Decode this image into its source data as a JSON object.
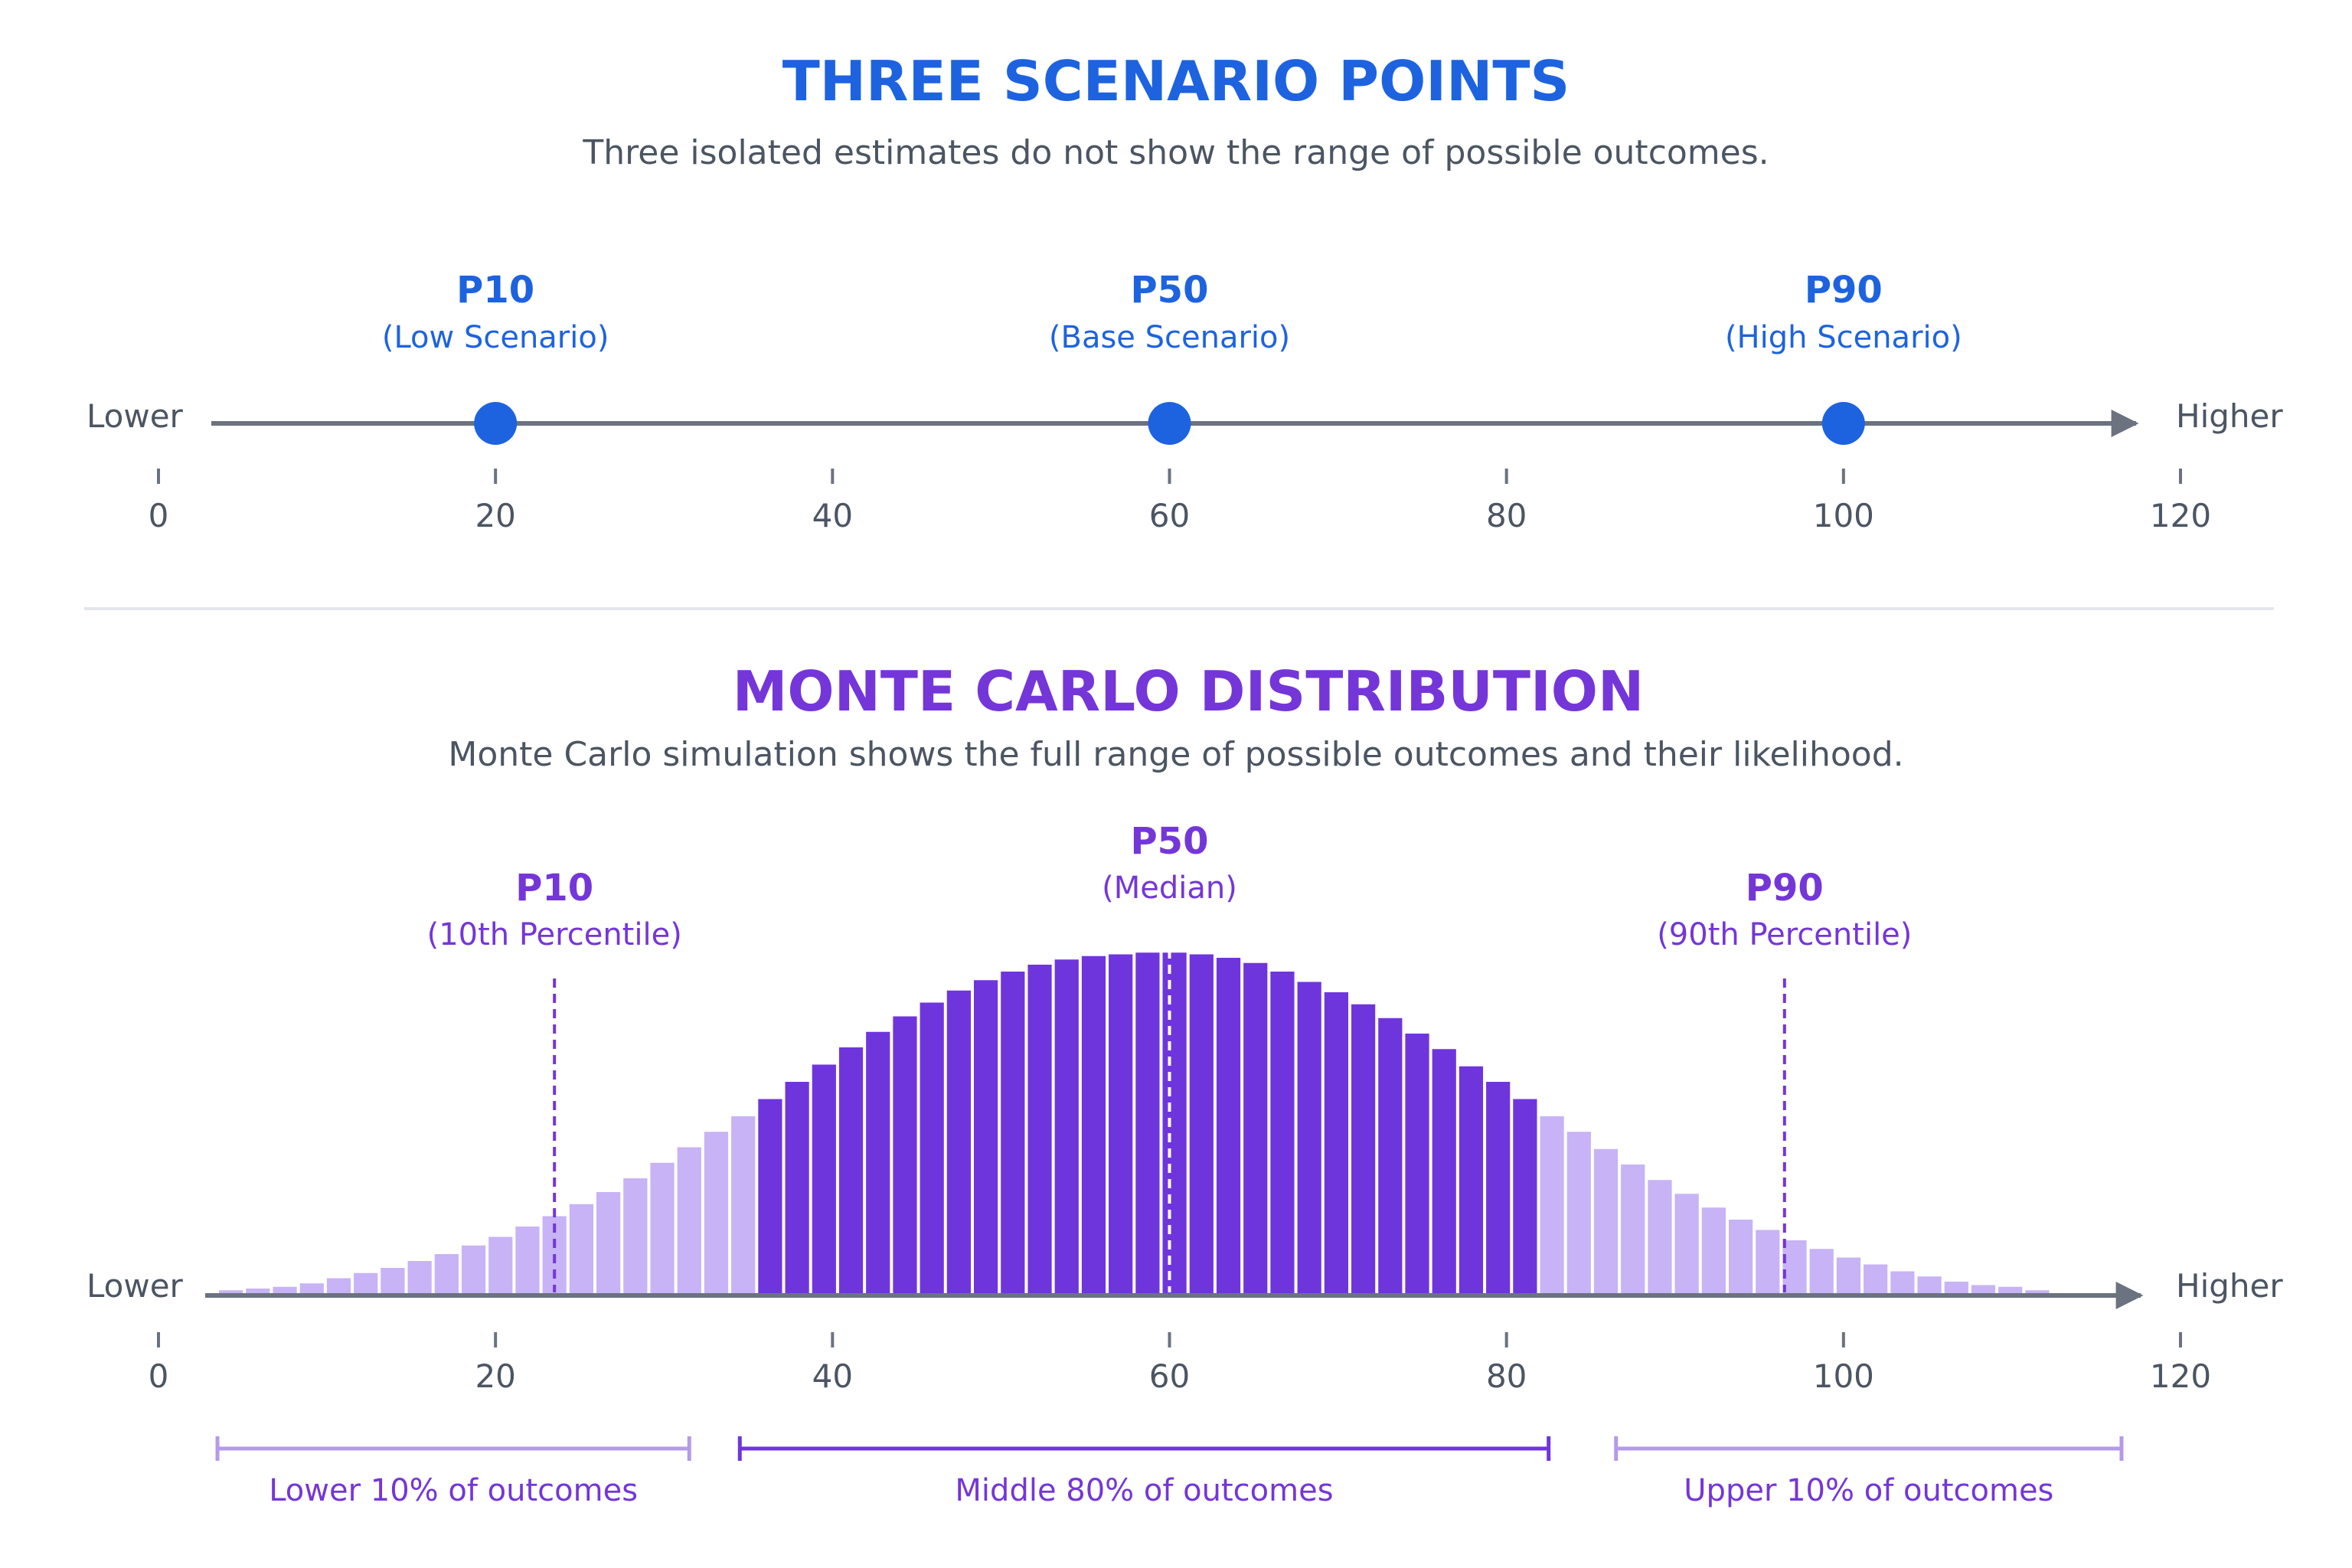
{
  "colors": {
    "blue": "#1d63e0",
    "purple": "#7436d8",
    "purple_dark": "#6f35dd",
    "purple_light": "#c7b3f5",
    "purple_marker": "#b49ae9",
    "axis": "#6b7280",
    "text_gray": "#4b5563",
    "divider": "#e3e5ea"
  },
  "top": {
    "title": "THREE SCENARIO POINTS",
    "subtitle": "Three isolated estimates do not show the range of possible outcomes.",
    "axis_lower": "Lower",
    "axis_higher": "Higher"
  },
  "bottom": {
    "title": "MONTE CARLO DISTRIBUTION",
    "subtitle": "Monte Carlo simulation shows the full range of possible outcomes and their likelihood.",
    "axis_lower": "Lower",
    "axis_higher": "Higher"
  },
  "chart_data": [
    {
      "type": "scatter",
      "title": "THREE SCENARIO POINTS",
      "subtitle": "Three isolated estimates do not show the range of possible outcomes.",
      "xlim": [
        0,
        120
      ],
      "x_ticks": [
        0,
        20,
        40,
        60,
        80,
        100,
        120
      ],
      "x_tick_labels": [
        "0",
        "20",
        "40",
        "60",
        "80",
        "100",
        "120"
      ],
      "x_axis_ends": [
        "Lower",
        "Higher"
      ],
      "points": [
        {
          "x": 20,
          "label": "P10",
          "sublabel": "(Low Scenario)"
        },
        {
          "x": 60,
          "label": "P50",
          "sublabel": "(Base Scenario)"
        },
        {
          "x": 100,
          "label": "P90",
          "sublabel": "(High Scenario)"
        }
      ]
    },
    {
      "type": "bar",
      "title": "MONTE CARLO DISTRIBUTION",
      "subtitle": "Monte Carlo simulation shows the full range of possible outcomes and their likelihood.",
      "xlim": [
        0,
        120
      ],
      "x_ticks": [
        0,
        20,
        40,
        60,
        80,
        100,
        120
      ],
      "x_tick_labels": [
        "0",
        "20",
        "40",
        "60",
        "80",
        "100",
        "120"
      ],
      "x_axis_ends": [
        "Lower",
        "Higher"
      ],
      "bin_start": 3.5,
      "bin_width": 1.6,
      "values": [
        1.5,
        2,
        2.5,
        3.5,
        5,
        6.5,
        8,
        10,
        12,
        14.5,
        17,
        20,
        23,
        26.5,
        30,
        34,
        38.5,
        43,
        47.5,
        52,
        57,
        62,
        67,
        72,
        76.5,
        81,
        85,
        88.5,
        91.5,
        94,
        96,
        97.5,
        98.5,
        99,
        99.5,
        99.5,
        99,
        98,
        96.5,
        94,
        91,
        88,
        84.5,
        80.5,
        76,
        71.5,
        66.5,
        62,
        57,
        52,
        47.5,
        42.5,
        38,
        33.5,
        29.5,
        25.5,
        22,
        19,
        16,
        13.5,
        11,
        9,
        7,
        5.5,
        4,
        3,
        2.5,
        1.5
      ],
      "ylim": [
        0,
        100
      ],
      "markers": [
        {
          "x": 23.5,
          "label": "P10",
          "sublabel": "(10th Percentile)"
        },
        {
          "x": 60,
          "label": "P50",
          "sublabel": "(Median)"
        },
        {
          "x": 96.5,
          "label": "P90",
          "sublabel": "(90th Percentile)"
        }
      ],
      "ranges": [
        {
          "from": 3.5,
          "to": 31.5,
          "label": "Lower 10% of outcomes"
        },
        {
          "from": 34.5,
          "to": 82.5,
          "label": "Middle 80% of outcomes"
        },
        {
          "from": 86.5,
          "to": 116.5,
          "label": "Upper 10% of outcomes"
        }
      ],
      "highlight_range": [
        35,
        82
      ]
    }
  ]
}
